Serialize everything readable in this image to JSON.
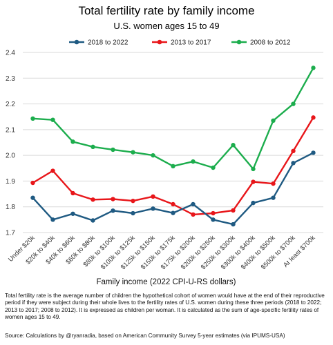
{
  "title": "Total fertility rate by family income",
  "subtitle": "U.S. women ages 15 to 49",
  "footnote": "Total fertility rate is the average number of children the hypothetical cohort of women would have at the end of their reproductive period if they were subject during their whole lives to the fertility rates of U.S. women during these three periods (2018 to 2022; 2013 to 2017; 2008 to 2012). It is expressed as children per woman. It is calculated as the sum of age-specific fertility rates of women ages 15 to 49.",
  "source": "Source: Calculations by @ryanradia, based on American Community Survey 5-year estimates (via IPUMS-USA)",
  "chart_data": {
    "type": "line",
    "xlabel": "Family income (2022 CPI-U-RS dollars)",
    "ylabel": "",
    "ylim": [
      1.7,
      2.4
    ],
    "yticks": [
      "1.7",
      "1.8",
      "1.9",
      "2.0",
      "2.1",
      "2.2",
      "2.3",
      "2.4"
    ],
    "grid": true,
    "legend_position": "top",
    "categories": [
      "Under $20k",
      "$20k to $40k",
      "$40k to $60k",
      "$60k to $80k",
      "$80k to $100k",
      "$100k to $125k",
      "$125k to $150k",
      "$150k to $175k",
      "$175k to $200k",
      "$200k to $250k",
      "$250k to $300k",
      "$300k to $400k",
      "$400k to $500k",
      "$500k to $700k",
      "At least $700k"
    ],
    "series": [
      {
        "name": "2018 to 2022",
        "color": "#1f5a82",
        "values": [
          1.835,
          1.75,
          1.773,
          1.747,
          1.785,
          1.775,
          1.793,
          1.776,
          1.81,
          1.75,
          1.732,
          1.815,
          1.835,
          1.97,
          2.01
        ]
      },
      {
        "name": "2013 to 2017",
        "color": "#e8161a",
        "values": [
          1.893,
          1.94,
          1.853,
          1.828,
          1.83,
          1.823,
          1.84,
          1.81,
          1.77,
          1.775,
          1.786,
          1.897,
          1.89,
          2.017,
          2.147
        ]
      },
      {
        "name": "2008 to 2012",
        "color": "#1cad4d",
        "values": [
          2.143,
          2.138,
          2.053,
          2.033,
          2.022,
          2.012,
          2.0,
          1.958,
          1.976,
          1.952,
          2.04,
          1.947,
          2.135,
          2.2,
          2.34
        ]
      }
    ]
  }
}
